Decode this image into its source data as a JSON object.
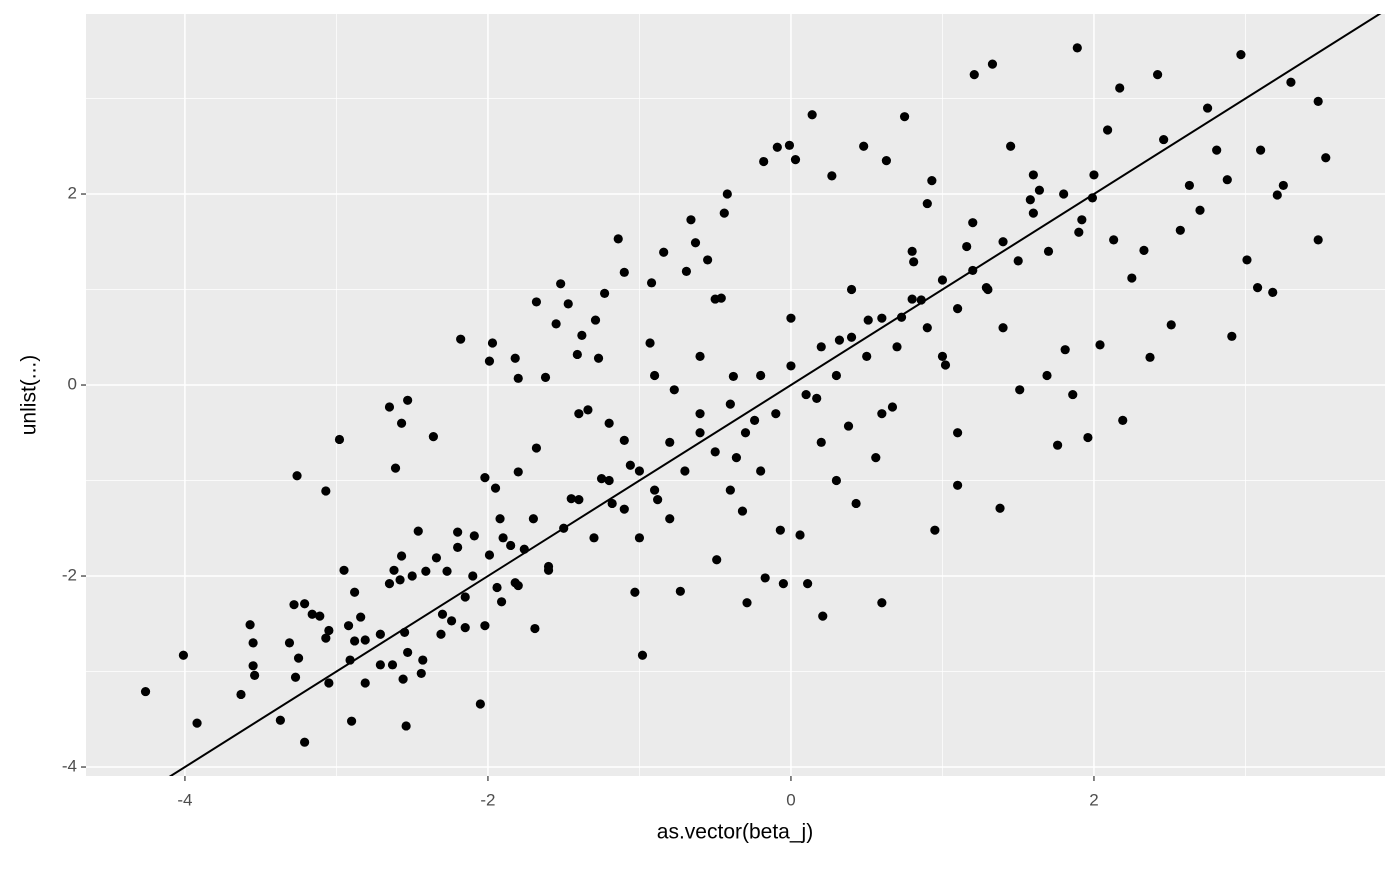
{
  "chart_data": {
    "type": "scatter",
    "x_label": "as.vector(beta_j)",
    "y_label": "unlist(...)",
    "xlim": [
      -4.653,
      3.921
    ],
    "ylim": [
      -4.094,
      3.885
    ],
    "xticks": [
      -4,
      -2,
      0,
      2
    ],
    "yticks": [
      -4,
      -2,
      0,
      2
    ],
    "minor_xticks": [
      -3,
      -1,
      1,
      3
    ],
    "minor_yticks": [
      -3,
      -1,
      1,
      3
    ],
    "grid": true,
    "color": "#000000",
    "reference_line": {
      "slope": 1,
      "intercept": 0,
      "color": "#000000"
    },
    "x": [
      -4.26,
      -4.01,
      -3.92,
      -3.63,
      -3.57,
      -3.55,
      -3.55,
      -3.54,
      -3.37,
      -3.31,
      -3.28,
      -3.26,
      -3.25,
      -3.27,
      -3.21,
      -3.21,
      -3.16,
      -3.11,
      -3.07,
      -3.05,
      -3.07,
      -3.05,
      -2.98,
      -2.95,
      -2.92,
      -2.9,
      -2.91,
      -2.88,
      -2.88,
      -2.84,
      -2.81,
      -2.81,
      -2.71,
      -2.71,
      -2.65,
      -2.65,
      -2.63,
      -2.62,
      -2.61,
      -2.58,
      -2.57,
      -2.56,
      -2.55,
      -2.54,
      -2.53,
      -2.53,
      -2.57,
      -2.5,
      -2.46,
      -2.44,
      -2.43,
      -2.41,
      -2.36,
      -2.34,
      -2.31,
      -2.27,
      -2.24,
      -2.2,
      -2.18,
      -2.15,
      -2.15,
      -2.09,
      -2.05,
      -2.02,
      -2.02,
      -1.99,
      -1.97,
      -1.99,
      -1.95,
      -1.94,
      -1.92,
      -1.91,
      -1.85,
      -1.82,
      -1.82,
      -1.8,
      -1.8,
      -1.76,
      -1.69,
      -1.68,
      -1.68,
      -1.62,
      -1.6,
      -1.55,
      -1.52,
      -1.47,
      -1.45,
      -1.41,
      -1.38,
      -1.34,
      -1.29,
      -1.27,
      -1.25,
      -1.23,
      -1.18,
      -1.14,
      -1.1,
      -1.1,
      -1.06,
      -1.03,
      -0.98,
      -0.93,
      -0.92,
      -0.88,
      -0.84,
      -0.77,
      -0.73,
      -0.69,
      -0.66,
      -0.63,
      -0.6,
      -0.55,
      -0.49,
      -0.46,
      -0.44,
      -0.42,
      -0.38,
      -0.36,
      -0.32,
      -0.29,
      -0.24,
      -0.18,
      -0.17,
      -0.09,
      -0.07,
      -0.05,
      -0.01,
      0.03,
      0.06,
      0.11,
      0.14,
      0.17,
      0.21,
      0.27,
      0.32,
      0.38,
      0.43,
      0.48,
      0.51,
      0.56,
      0.6,
      0.63,
      0.67,
      0.73,
      0.75,
      0.81,
      0.86,
      0.93,
      0.95,
      1.02,
      1.1,
      1.16,
      1.21,
      1.29,
      1.33,
      1.38,
      1.45,
      1.51,
      1.58,
      1.64,
      1.69,
      1.76,
      1.81,
      1.86,
      1.89,
      1.92,
      1.96,
      1.99,
      2.04,
      2.09,
      2.13,
      2.17,
      2.19,
      2.25,
      2.33,
      2.37,
      2.42,
      2.46,
      2.51,
      2.57,
      2.63,
      2.7,
      2.75,
      2.81,
      2.88,
      2.91,
      2.97,
      3.01,
      3.08,
      3.1,
      3.18,
      3.21,
      3.25,
      3.3,
      3.48,
      3.48,
      3.53,
      -1.5,
      -1.4,
      -1.3,
      -1.2,
      -1.1,
      -1.0,
      -0.9,
      -0.8,
      -0.7,
      -0.6,
      -0.5,
      -0.4,
      -0.3,
      -0.2,
      -0.1,
      0.0,
      0.1,
      0.2,
      0.3,
      0.4,
      0.5,
      0.6,
      0.7,
      0.8,
      0.9,
      1.0,
      1.1,
      1.2,
      1.3,
      1.4,
      1.5,
      1.6,
      1.7,
      1.8,
      1.9,
      2.0,
      -1.6,
      -1.7,
      -1.8,
      -1.9,
      -2.1,
      -2.2,
      -2.3,
      -1.2,
      -1.0,
      -0.8,
      -0.6,
      -0.4,
      -0.2,
      0.0,
      0.2,
      0.4,
      0.6,
      0.8,
      1.0,
      1.2,
      1.4,
      1.6,
      -1.4,
      -0.5,
      0.3,
      1.1,
      0.9,
      -0.9
    ],
    "values": [
      -3.21,
      -2.83,
      -3.54,
      -3.24,
      -2.51,
      -2.7,
      -2.94,
      -3.04,
      -3.51,
      -2.7,
      -2.3,
      -0.95,
      -2.86,
      -3.06,
      -3.74,
      -2.29,
      -2.4,
      -2.42,
      -1.11,
      -3.12,
      -2.65,
      -2.57,
      -0.57,
      -1.94,
      -2.52,
      -3.52,
      -2.88,
      -2.17,
      -2.68,
      -2.43,
      -3.12,
      -2.67,
      -2.61,
      -2.93,
      -0.23,
      -2.08,
      -2.93,
      -1.94,
      -0.87,
      -2.04,
      -0.4,
      -3.08,
      -2.59,
      -3.57,
      -0.16,
      -2.8,
      -1.79,
      -2.0,
      -1.53,
      -3.02,
      -2.88,
      -1.95,
      -0.54,
      -1.81,
      -2.61,
      -1.95,
      -2.47,
      -1.54,
      0.48,
      -2.22,
      -2.54,
      -1.58,
      -3.34,
      -0.97,
      -2.52,
      0.25,
      0.44,
      -1.78,
      -1.08,
      -2.12,
      -1.4,
      -2.27,
      -1.68,
      -2.07,
      0.28,
      0.07,
      -0.91,
      -1.72,
      -2.55,
      0.87,
      -0.66,
      0.08,
      -1.94,
      0.64,
      1.06,
      0.85,
      -1.19,
      0.32,
      0.52,
      -0.26,
      0.68,
      0.28,
      -0.98,
      0.96,
      -1.24,
      1.53,
      1.18,
      -0.58,
      -0.84,
      -2.17,
      -2.83,
      0.44,
      1.07,
      -1.2,
      1.39,
      -0.05,
      -2.16,
      1.19,
      1.73,
      1.49,
      -0.3,
      1.31,
      -1.83,
      0.91,
      1.8,
      2.0,
      0.09,
      -0.76,
      -1.32,
      -2.28,
      -0.37,
      2.34,
      -2.02,
      2.49,
      -1.52,
      -2.08,
      2.51,
      2.36,
      -1.57,
      -2.08,
      2.83,
      -0.14,
      -2.42,
      2.19,
      0.47,
      -0.43,
      -1.24,
      2.5,
      0.68,
      -0.76,
      -2.28,
      2.35,
      -0.23,
      0.71,
      2.81,
      1.29,
      0.89,
      2.14,
      -1.52,
      0.21,
      -1.05,
      1.45,
      3.25,
      1.02,
      3.36,
      -1.29,
      2.5,
      -0.05,
      1.94,
      2.04,
      0.1,
      -0.63,
      0.37,
      -0.1,
      3.53,
      1.73,
      -0.55,
      1.96,
      0.42,
      2.67,
      1.52,
      3.11,
      -0.37,
      1.12,
      1.41,
      0.29,
      3.25,
      2.57,
      0.63,
      1.62,
      2.09,
      1.83,
      2.9,
      2.46,
      2.15,
      0.51,
      3.46,
      1.31,
      1.02,
      2.46,
      0.97,
      1.99,
      2.09,
      3.17,
      2.97,
      1.52,
      2.38,
      -1.5,
      -1.2,
      -1.6,
      -1.0,
      -1.3,
      -0.9,
      -1.1,
      -0.6,
      -0.9,
      -0.5,
      -0.7,
      -0.2,
      -0.5,
      0.1,
      -0.3,
      0.2,
      -0.1,
      0.4,
      0.1,
      0.5,
      0.3,
      0.7,
      0.4,
      0.9,
      0.6,
      1.1,
      0.8,
      1.2,
      1.0,
      1.5,
      1.3,
      1.8,
      1.4,
      2.0,
      1.6,
      2.2,
      -1.9,
      -1.4,
      -2.1,
      -1.6,
      -2.0,
      -1.7,
      -2.4,
      -0.4,
      -1.6,
      -1.4,
      0.3,
      -1.1,
      -0.9,
      0.7,
      -0.6,
      1.0,
      -0.3,
      1.4,
      0.3,
      1.7,
      0.6,
      2.2,
      -0.3,
      0.9,
      -1.0,
      -0.5,
      1.9,
      0.1
    ]
  }
}
